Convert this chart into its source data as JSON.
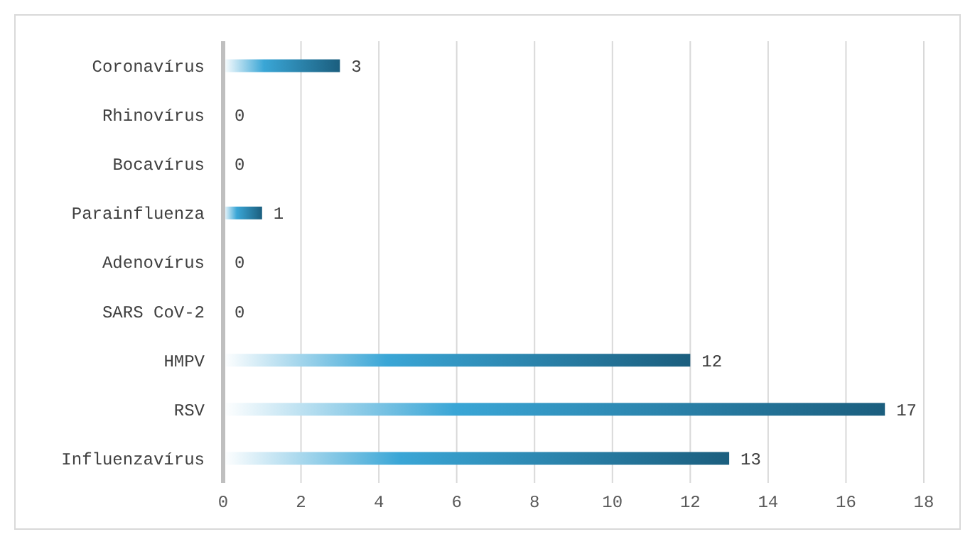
{
  "chart_data": {
    "type": "bar",
    "orientation": "horizontal",
    "categories": [
      "Coronavírus",
      "Rhinovírus",
      "Bocavírus",
      "Parainfluenza",
      "Adenovírus",
      "SARS CoV-2",
      "HMPV",
      "RSV",
      "Influenzavírus"
    ],
    "values": [
      3,
      0,
      0,
      1,
      0,
      0,
      12,
      17,
      13
    ],
    "color": "#1b5e7e",
    "xlim": [
      0,
      18
    ],
    "xticks": [
      0,
      2,
      4,
      6,
      8,
      10,
      12,
      14,
      16,
      18
    ],
    "grid": "x",
    "data_labels": true
  }
}
